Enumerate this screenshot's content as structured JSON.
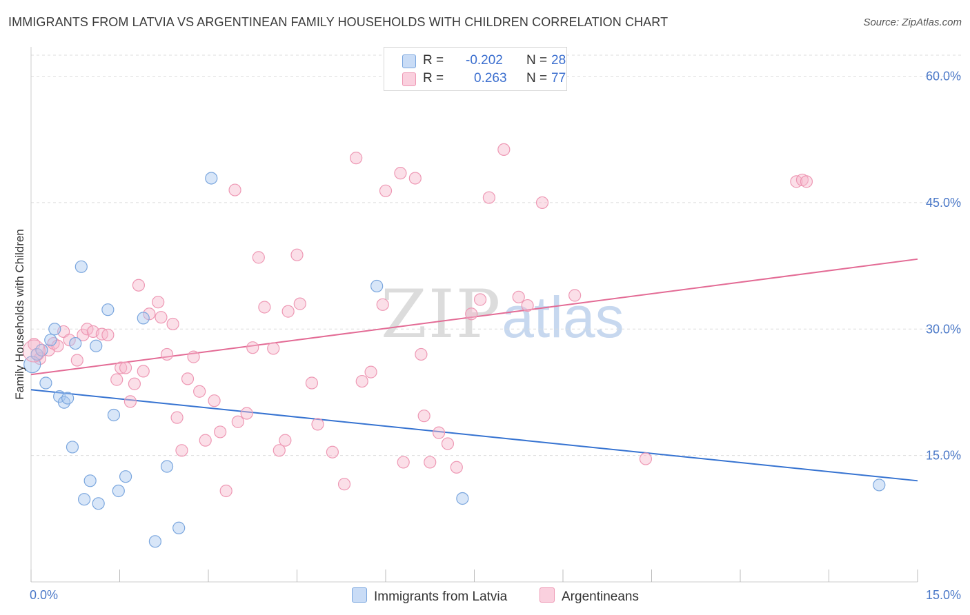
{
  "title": "IMMIGRANTS FROM LATVIA VS ARGENTINEAN FAMILY HOUSEHOLDS WITH CHILDREN CORRELATION CHART",
  "source": "Source: ZipAtlas.com",
  "watermark": {
    "zip": "ZIP",
    "atlas": "atlas"
  },
  "legend": {
    "rows": [
      {
        "r_label": "R =",
        "r_value": "-0.202",
        "n_label": "N =",
        "n_value": "28",
        "color": "#a9c8f0"
      },
      {
        "r_label": "R =",
        "r_value": "0.263",
        "n_label": "N =",
        "n_value": "77",
        "color": "#f6b8cc"
      }
    ]
  },
  "bottom_legend": [
    {
      "label": "Immigrants from Latvia",
      "color": "#a9c8f0"
    },
    {
      "label": "Argentineans",
      "color": "#f6b8cc"
    }
  ],
  "chart_data": {
    "type": "scatter",
    "title": "IMMIGRANTS FROM LATVIA VS ARGENTINEAN FAMILY HOUSEHOLDS WITH CHILDREN CORRELATION CHART",
    "xlabel": "",
    "ylabel": "Family Households with Children",
    "xlim": [
      0,
      15
    ],
    "ylim": [
      0,
      62.5
    ],
    "x_tick_labels": [
      {
        "value": 0,
        "label": "0.0%"
      },
      {
        "value": 15,
        "label": "15.0%"
      }
    ],
    "y_tick_labels": [
      {
        "value": 15,
        "label": "15.0%"
      },
      {
        "value": 30,
        "label": "30.0%"
      },
      {
        "value": 45,
        "label": "45.0%"
      },
      {
        "value": 60,
        "label": "60.0%"
      }
    ],
    "grid": true,
    "series": [
      {
        "name": "Immigrants from Latvia",
        "color": "#a9c8f0",
        "stroke": "#7aa6de",
        "trend": {
          "x": [
            0,
            15
          ],
          "y": [
            22.8,
            12.0
          ],
          "color": "#3673d1"
        },
        "points": [
          [
            0.02,
            25.8
          ],
          [
            0.1,
            27.0
          ],
          [
            0.18,
            27.5
          ],
          [
            0.25,
            23.6
          ],
          [
            0.33,
            28.7
          ],
          [
            0.4,
            30.0
          ],
          [
            0.48,
            22.0
          ],
          [
            0.56,
            21.3
          ],
          [
            0.62,
            21.8
          ],
          [
            0.7,
            16.0
          ],
          [
            0.75,
            28.3
          ],
          [
            0.85,
            37.4
          ],
          [
            0.9,
            9.8
          ],
          [
            1.0,
            12.0
          ],
          [
            1.1,
            28.0
          ],
          [
            1.14,
            9.3
          ],
          [
            1.3,
            32.3
          ],
          [
            1.4,
            19.8
          ],
          [
            1.48,
            10.8
          ],
          [
            1.6,
            12.5
          ],
          [
            1.9,
            31.3
          ],
          [
            2.1,
            4.8
          ],
          [
            2.3,
            13.7
          ],
          [
            2.5,
            6.4
          ],
          [
            3.05,
            47.9
          ],
          [
            5.85,
            35.1
          ],
          [
            7.3,
            9.9
          ],
          [
            14.35,
            11.5
          ]
        ]
      },
      {
        "name": "Argentineans",
        "color": "#f6b8cc",
        "stroke": "#ee98b4",
        "trend": {
          "x": [
            0,
            15
          ],
          "y": [
            24.6,
            38.3
          ],
          "color": "#e36b95"
        },
        "points": [
          [
            0.05,
            28.2
          ],
          [
            0.1,
            27.0
          ],
          [
            0.15,
            26.5
          ],
          [
            0.3,
            27.5
          ],
          [
            0.38,
            28.3
          ],
          [
            0.45,
            28.0
          ],
          [
            0.55,
            29.7
          ],
          [
            0.65,
            28.7
          ],
          [
            0.78,
            26.3
          ],
          [
            0.88,
            29.3
          ],
          [
            0.95,
            30.0
          ],
          [
            1.05,
            29.7
          ],
          [
            1.2,
            29.4
          ],
          [
            1.3,
            29.3
          ],
          [
            1.45,
            24.0
          ],
          [
            1.52,
            25.4
          ],
          [
            1.6,
            25.4
          ],
          [
            1.68,
            21.4
          ],
          [
            1.75,
            23.5
          ],
          [
            1.82,
            35.2
          ],
          [
            1.9,
            25.0
          ],
          [
            2.0,
            31.8
          ],
          [
            2.15,
            33.2
          ],
          [
            2.2,
            31.4
          ],
          [
            2.3,
            27.0
          ],
          [
            2.4,
            30.6
          ],
          [
            2.47,
            19.5
          ],
          [
            2.55,
            15.6
          ],
          [
            2.65,
            24.1
          ],
          [
            2.75,
            26.7
          ],
          [
            2.85,
            22.6
          ],
          [
            2.95,
            16.8
          ],
          [
            3.1,
            21.5
          ],
          [
            3.2,
            17.8
          ],
          [
            3.3,
            10.8
          ],
          [
            3.45,
            46.5
          ],
          [
            3.5,
            19.0
          ],
          [
            3.65,
            20.0
          ],
          [
            3.75,
            27.8
          ],
          [
            3.85,
            38.5
          ],
          [
            3.95,
            32.6
          ],
          [
            4.1,
            27.7
          ],
          [
            4.2,
            15.6
          ],
          [
            4.3,
            16.8
          ],
          [
            4.35,
            32.1
          ],
          [
            4.5,
            38.8
          ],
          [
            4.55,
            33.0
          ],
          [
            4.75,
            23.6
          ],
          [
            4.85,
            18.7
          ],
          [
            5.1,
            15.4
          ],
          [
            5.3,
            11.6
          ],
          [
            5.5,
            50.3
          ],
          [
            5.6,
            23.8
          ],
          [
            5.75,
            24.9
          ],
          [
            5.95,
            32.9
          ],
          [
            6.0,
            46.4
          ],
          [
            6.25,
            48.5
          ],
          [
            6.3,
            14.2
          ],
          [
            6.5,
            47.9
          ],
          [
            6.6,
            27.0
          ],
          [
            6.65,
            19.7
          ],
          [
            6.75,
            14.2
          ],
          [
            6.9,
            17.7
          ],
          [
            7.05,
            16.4
          ],
          [
            7.2,
            13.6
          ],
          [
            7.45,
            31.8
          ],
          [
            7.6,
            33.5
          ],
          [
            7.75,
            45.6
          ],
          [
            8.0,
            51.3
          ],
          [
            8.25,
            33.8
          ],
          [
            8.4,
            32.8
          ],
          [
            8.65,
            45.0
          ],
          [
            9.2,
            34.0
          ],
          [
            10.4,
            14.6
          ],
          [
            12.95,
            47.5
          ],
          [
            13.05,
            47.7
          ],
          [
            13.12,
            47.5
          ]
        ]
      }
    ]
  }
}
